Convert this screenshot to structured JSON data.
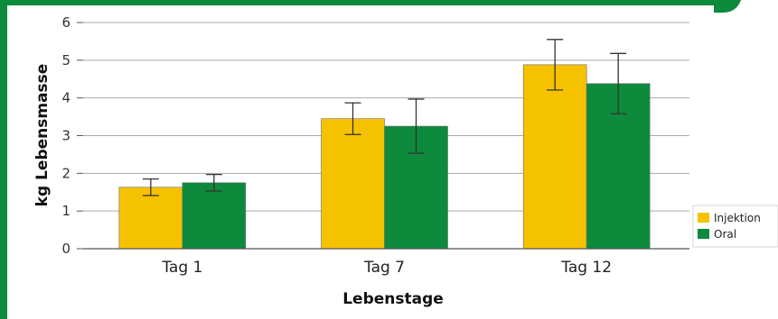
{
  "chart_data": {
    "type": "bar",
    "title": "",
    "xlabel": "Lebenstage",
    "ylabel": "kg Lebensmasse",
    "categories": [
      "Tag 1",
      "Tag 7",
      "Tag 12"
    ],
    "series": [
      {
        "name": "Injektion",
        "values": [
          1.63,
          3.45,
          4.88
        ],
        "error": [
          0.22,
          0.42,
          0.67
        ],
        "color": "#f6c200"
      },
      {
        "name": "Oral",
        "values": [
          1.75,
          3.25,
          4.38
        ],
        "error": [
          0.22,
          0.72,
          0.8
        ],
        "color": "#0e8a3c"
      }
    ],
    "ylim": [
      0,
      6
    ],
    "yticks": [
      "0",
      "1",
      "2",
      "3",
      "4",
      "5",
      "6"
    ],
    "grid": true,
    "legend": "right"
  },
  "colors": {
    "frame": "#0e8a3c",
    "grid": "#aaaaaa",
    "axis": "#555555",
    "error_bar": "#333333"
  }
}
